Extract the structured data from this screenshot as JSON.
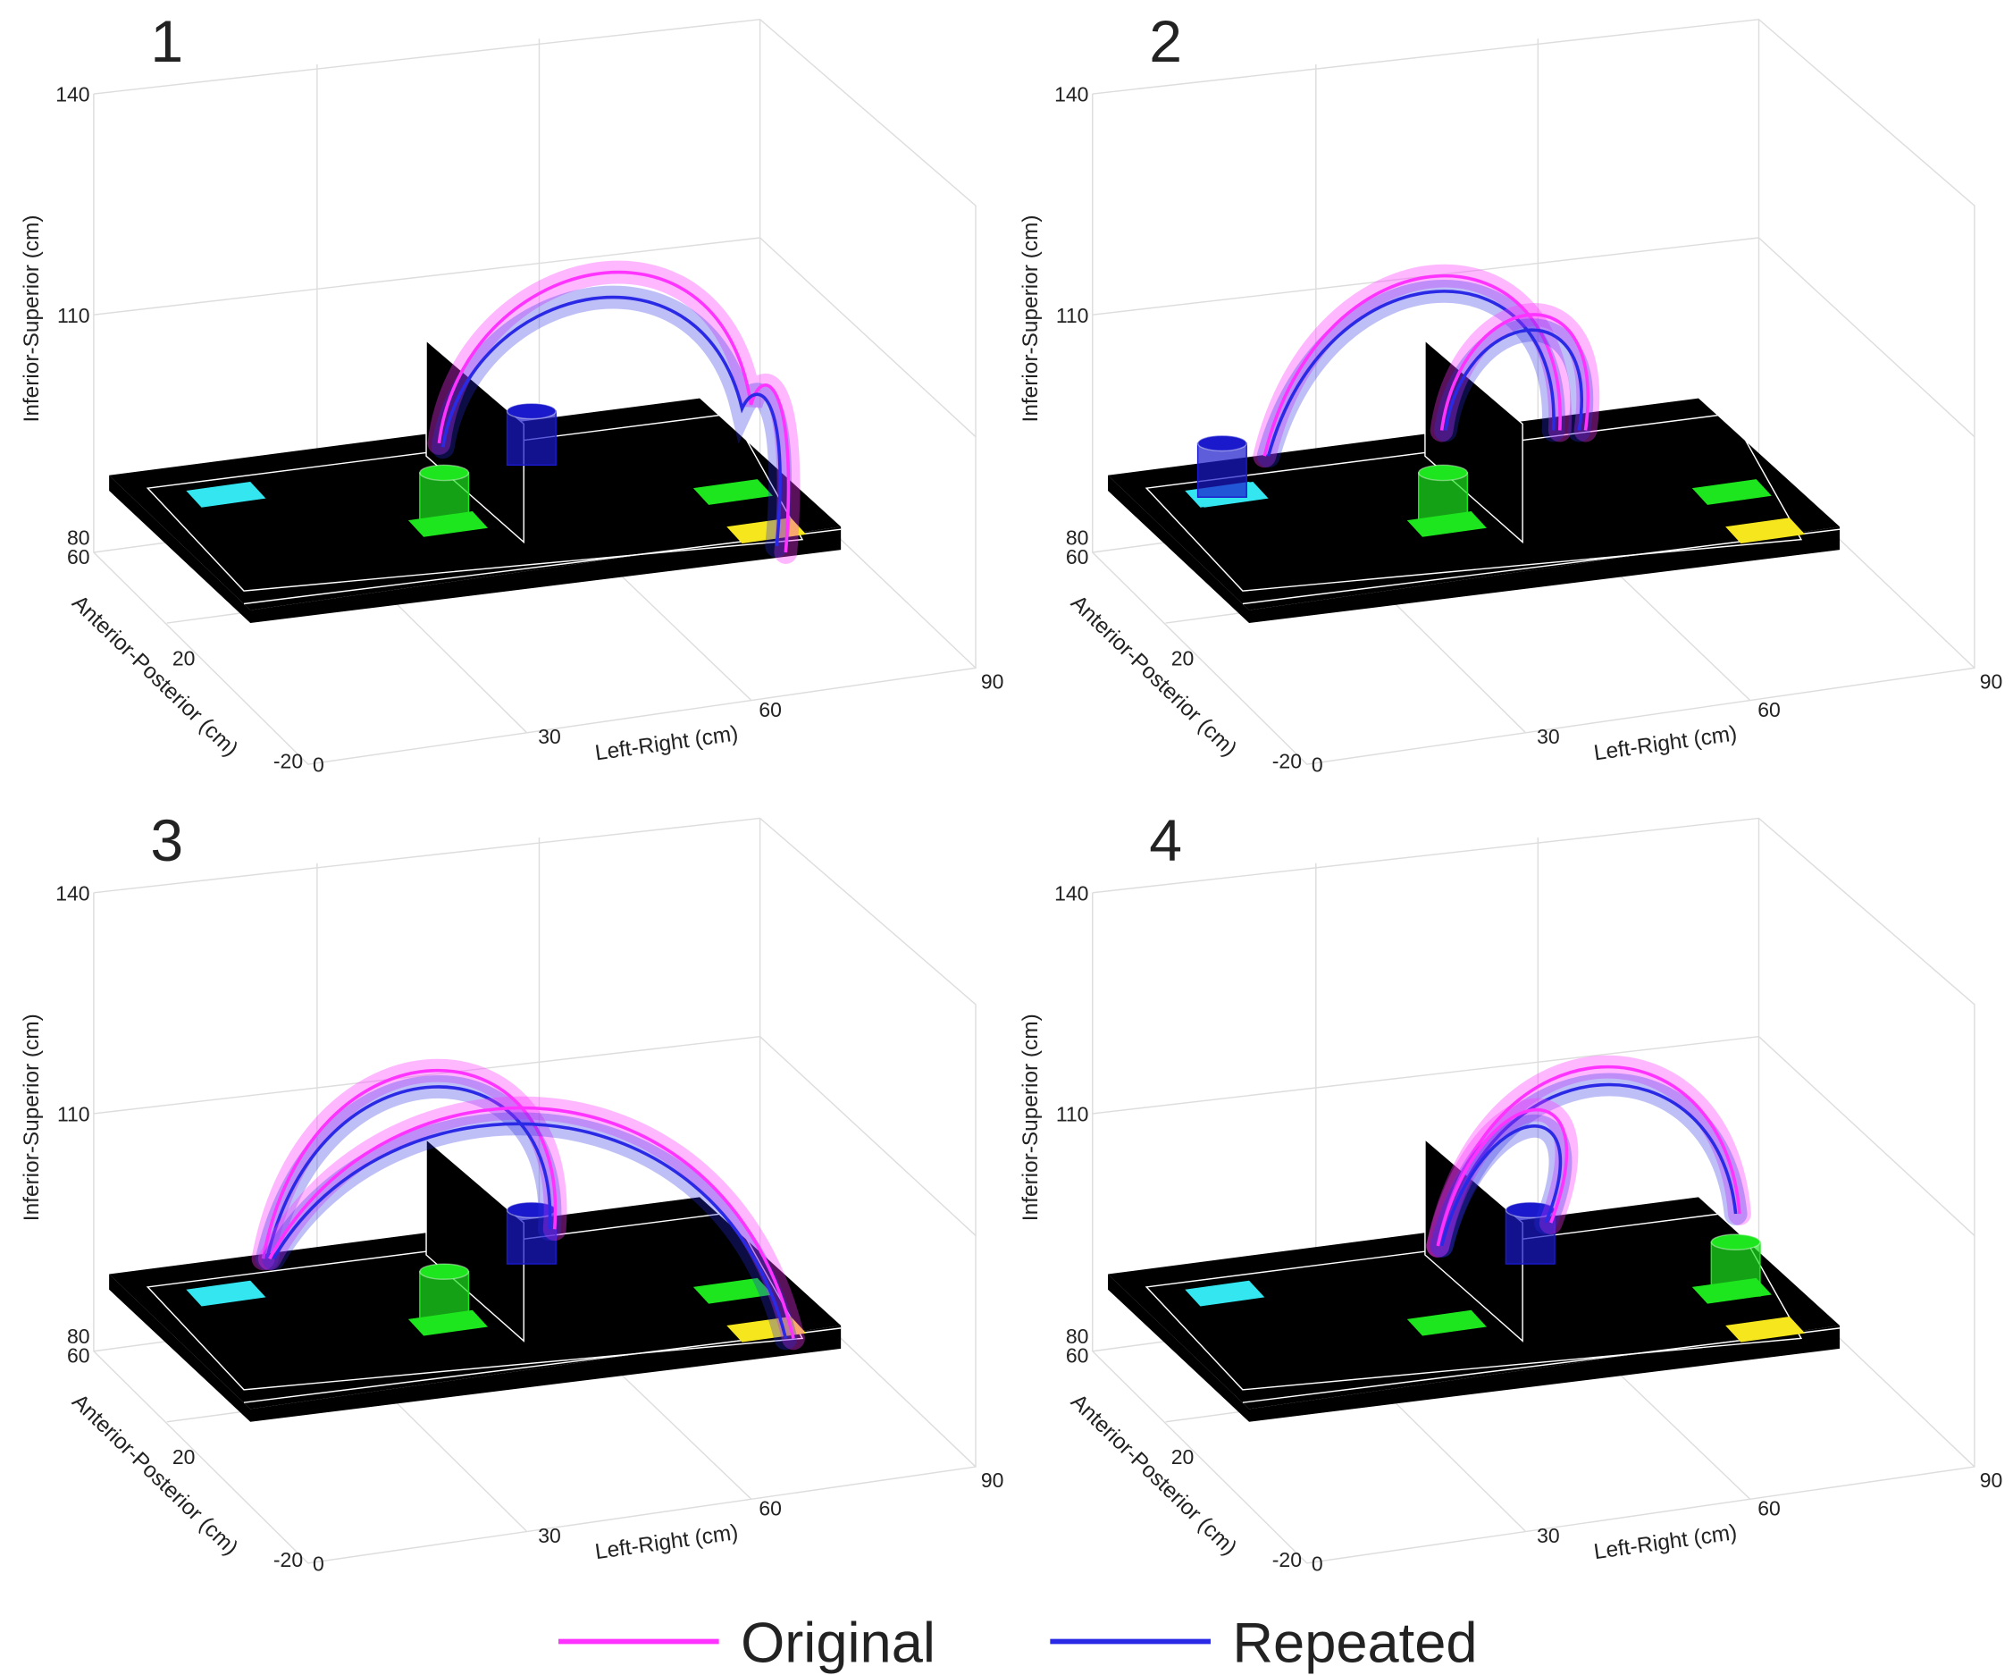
{
  "axes": {
    "z_title": "Inferior-Superior (cm)",
    "y_title": "Anterior-Posterior (cm)",
    "x_title": "Left-Right (cm)",
    "zticks": [
      140,
      110,
      80
    ],
    "yticks": [
      60,
      20,
      -20
    ],
    "xticks": [
      0,
      30,
      60,
      90
    ]
  },
  "panels": [
    {
      "label": "1"
    },
    {
      "label": "2"
    },
    {
      "label": "3"
    },
    {
      "label": "4"
    }
  ],
  "legend": [
    {
      "name": "Original",
      "color": "#ff33ff"
    },
    {
      "name": "Repeated",
      "color": "#2a2ae6"
    }
  ]
}
